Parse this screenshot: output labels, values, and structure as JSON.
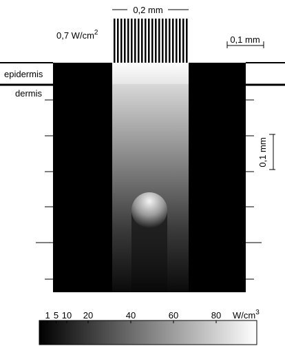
{
  "diagram": {
    "beam_width_label": "0,2 mm",
    "irradiance": {
      "base": "0,7 W/cm",
      "exp": "2"
    },
    "scale_horizontal": "0,1 mm",
    "layers": [
      "epidermis",
      "dermis"
    ],
    "scale_vertical": "0,1 mm"
  },
  "colorbar": {
    "range": [
      0,
      100
    ],
    "ticks": [
      1,
      5,
      10,
      20,
      40,
      60,
      80
    ],
    "unit": {
      "base": "W/cm",
      "exp": "3"
    }
  }
}
